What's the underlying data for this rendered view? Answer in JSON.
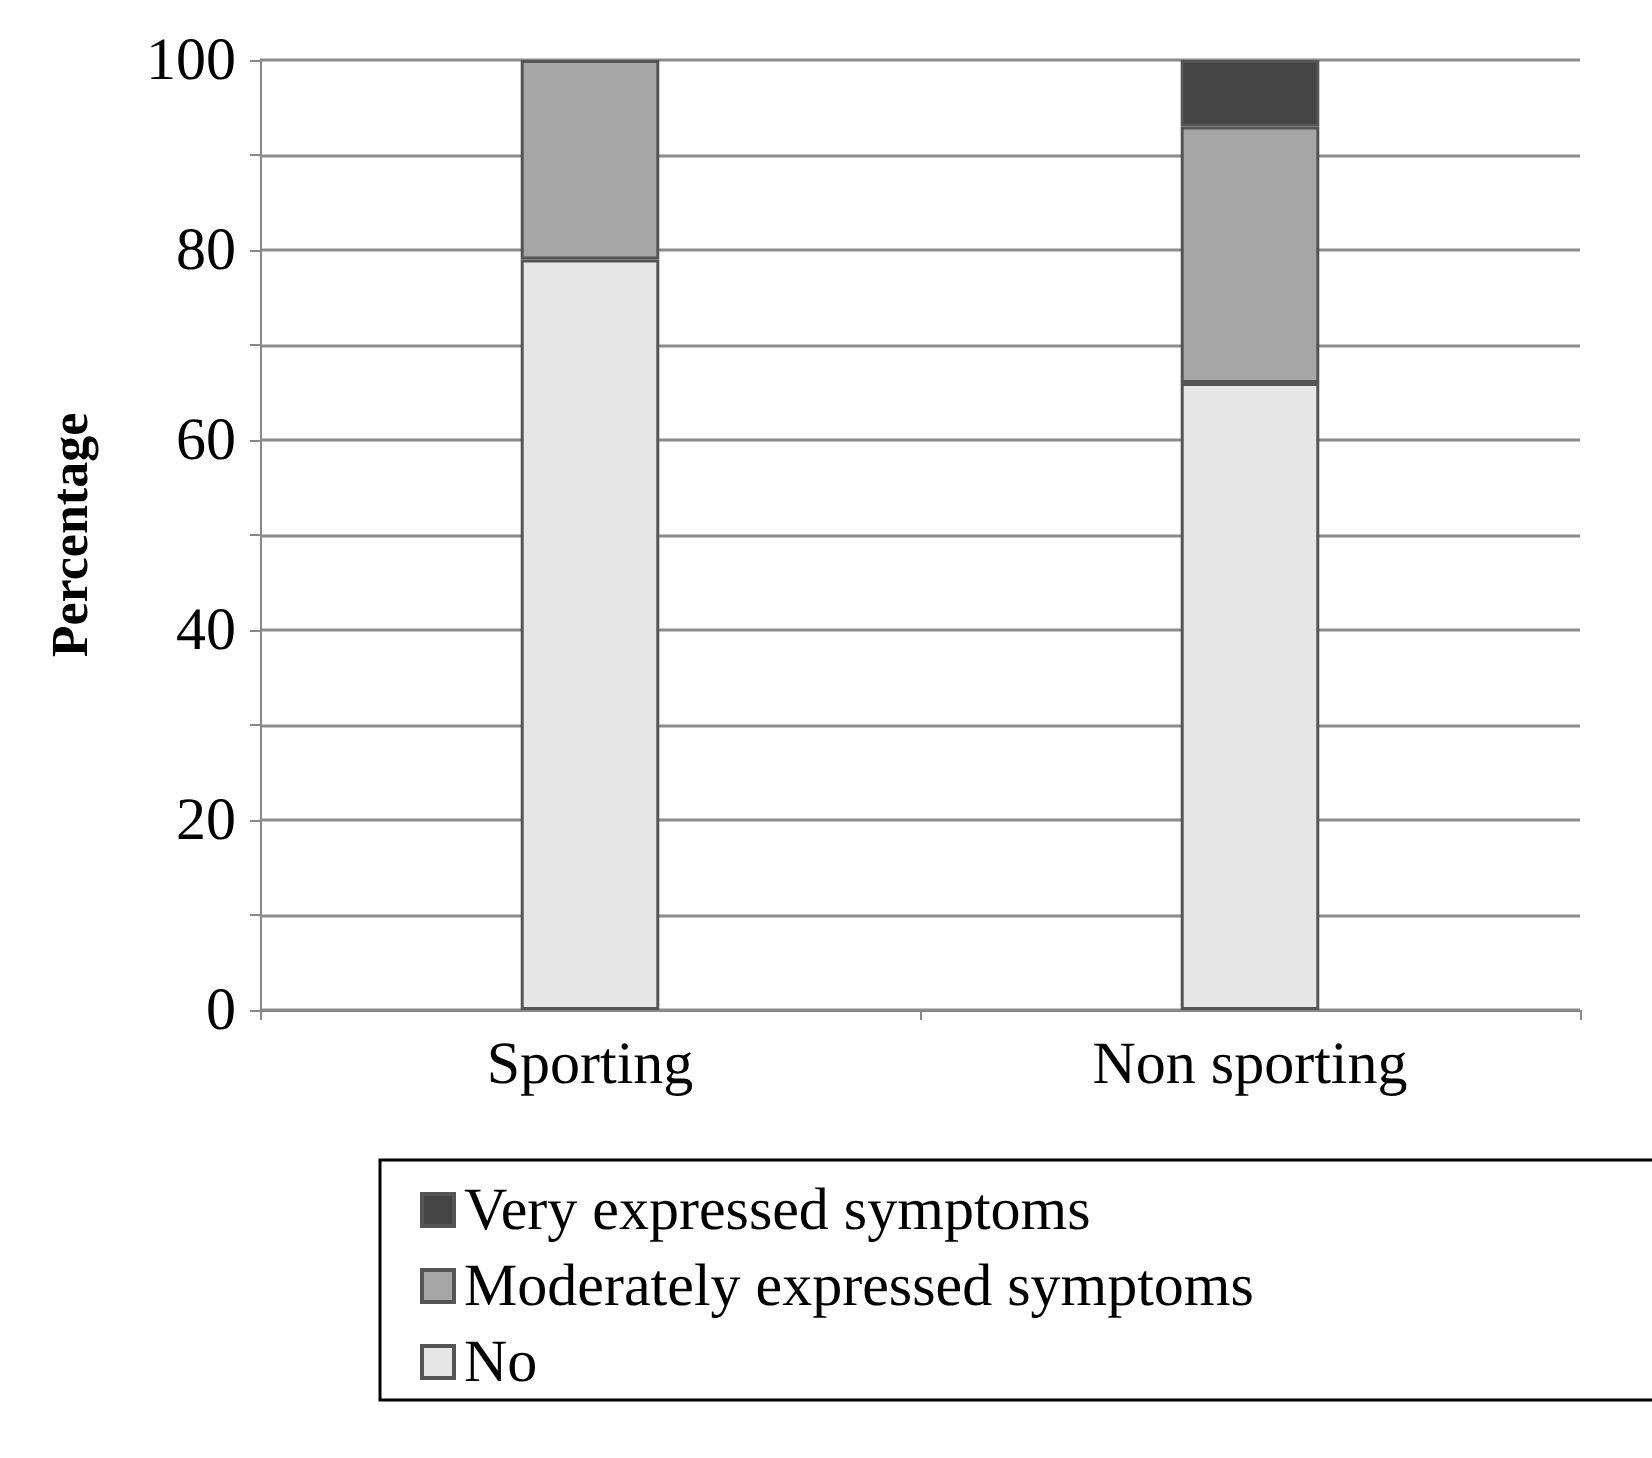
{
  "chart_data": {
    "type": "bar",
    "stacked": true,
    "ylabel": "Percentage",
    "categories": [
      "Sporting",
      "Non sporting"
    ],
    "series": [
      {
        "name": "No",
        "color": "#e6e6e6",
        "values": [
          79,
          66
        ]
      },
      {
        "name": "Moderately expressed symptoms",
        "color": "#a6a6a6",
        "values": [
          21,
          27
        ]
      },
      {
        "name": "Very expressed symptoms",
        "color": "#444444",
        "values": [
          0,
          7
        ]
      }
    ],
    "ylim": [
      0,
      100
    ],
    "yticks": [
      0,
      {
        "value": 10,
        "label": null
      },
      20,
      {
        "value": 30,
        "label": null
      },
      40,
      {
        "value": 50,
        "label": null
      },
      60,
      {
        "value": 70,
        "label": null
      },
      80,
      {
        "value": 90,
        "label": null
      },
      100
    ],
    "grid": "y",
    "legend": "bottom"
  }
}
